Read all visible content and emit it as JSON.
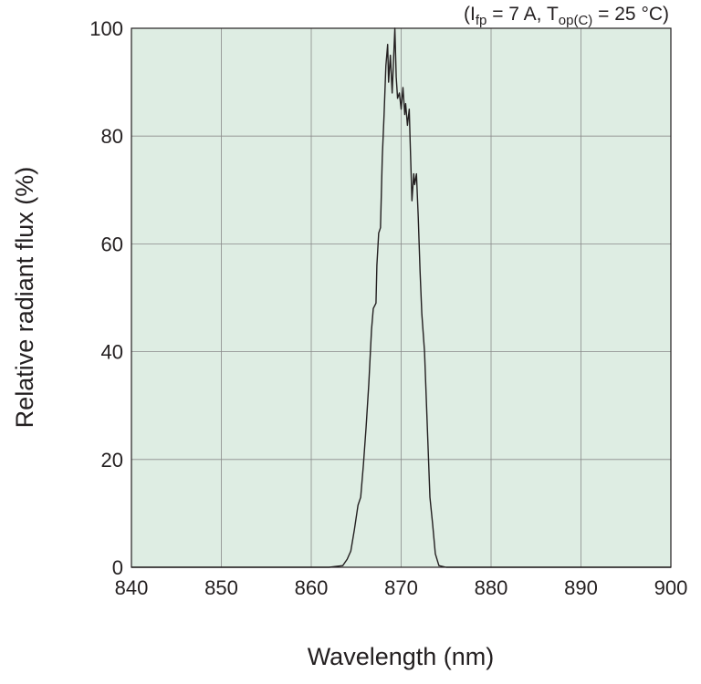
{
  "chart_data": {
    "type": "line",
    "title": "",
    "conditions": {
      "open": "(I",
      "ifp_sub": "fp",
      "middle": " = 7 A, T",
      "top_sub": "op(C)",
      "close": " = 25 °C)"
    },
    "xlabel": "Wavelength (nm)",
    "ylabel": "Relative radiant flux (%)",
    "xlim": [
      840,
      900
    ],
    "ylim": [
      0,
      100
    ],
    "xticks": [
      840,
      850,
      860,
      870,
      880,
      890,
      900
    ],
    "yticks": [
      0,
      20,
      40,
      60,
      80,
      100
    ],
    "grid": true,
    "colors": {
      "plot_bg": "#deede3",
      "grid": "#8a8a8a",
      "line": "#231f20",
      "frame": "#231f20"
    },
    "series": [
      {
        "x": [
          840,
          855,
          862,
          863.5,
          864,
          864.4,
          864.8,
          865.2,
          865.5,
          865.8,
          866.1,
          866.4,
          866.7,
          866.9,
          867.2,
          867.3,
          867.5,
          867.7,
          867.9,
          868.1,
          868.3,
          868.5,
          868.6,
          868.8,
          869.0,
          869.2,
          869.3,
          869.45,
          869.6,
          869.8,
          870.0,
          870.2,
          870.4,
          870.5,
          870.7,
          870.9,
          871.0,
          871.2,
          871.4,
          871.5,
          871.7,
          871.9,
          872.1,
          872.3,
          872.6,
          872.8,
          873.0,
          873.2,
          873.5,
          873.8,
          874.2,
          875,
          880,
          890,
          900
        ],
        "y": [
          0,
          0,
          0,
          0.3,
          1.5,
          3,
          7,
          11.5,
          13,
          19,
          26,
          34,
          44,
          48,
          49,
          56,
          62,
          63,
          76,
          84,
          93,
          97,
          90,
          95,
          88,
          96,
          100,
          91,
          87,
          88,
          85,
          89,
          84,
          86,
          82,
          85,
          79,
          68,
          73,
          71,
          73,
          65,
          55,
          47,
          40,
          31,
          22,
          13,
          8,
          2.5,
          0.3,
          0,
          0,
          0,
          0
        ]
      }
    ]
  }
}
